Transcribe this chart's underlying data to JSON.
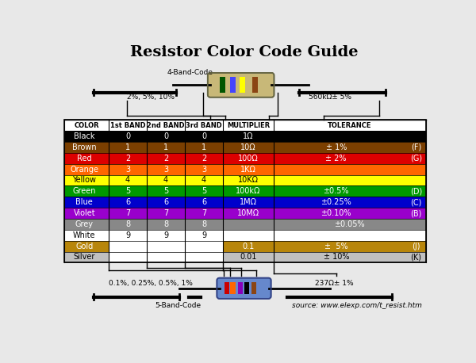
{
  "title": "Resistor Color Code Guide",
  "title_fontsize": 14,
  "col_headers": [
    "COLOR",
    "1st BAND",
    "2nd BAND",
    "3rd BAND",
    "MULTIPLIER",
    "TOLERANCE"
  ],
  "rows": [
    {
      "name": "Black",
      "digit": "0",
      "mult": "1Ω",
      "tol": "",
      "code": "",
      "bg": "#000000",
      "fg": "#ffffff"
    },
    {
      "name": "Brown",
      "digit": "1",
      "mult": "10Ω",
      "tol": "± 1%",
      "code": "(F)",
      "bg": "#7B3F00",
      "fg": "#ffffff"
    },
    {
      "name": "Red",
      "digit": "2",
      "mult": "100Ω",
      "tol": "± 2%",
      "code": "(G)",
      "bg": "#DD0000",
      "fg": "#ffffff"
    },
    {
      "name": "Orange",
      "digit": "3",
      "mult": "1KΩ",
      "tol": "",
      "code": "",
      "bg": "#FF6600",
      "fg": "#ffffff"
    },
    {
      "name": "Yellow",
      "digit": "4",
      "mult": "10KΩ",
      "tol": "",
      "code": "",
      "bg": "#FFFF00",
      "fg": "#000000"
    },
    {
      "name": "Green",
      "digit": "5",
      "mult": "100kΩ",
      "tol": "±0.5%",
      "code": "(D)",
      "bg": "#009900",
      "fg": "#ffffff"
    },
    {
      "name": "Blue",
      "digit": "6",
      "mult": "1MΩ",
      "tol": "±0.25%",
      "code": "(C)",
      "bg": "#0000CC",
      "fg": "#ffffff"
    },
    {
      "name": "Violet",
      "digit": "7",
      "mult": "10MΩ",
      "tol": "±0.10%",
      "code": "(B)",
      "bg": "#9900CC",
      "fg": "#ffffff"
    },
    {
      "name": "Grey",
      "digit": "8",
      "mult": "",
      "tol": "±0.05%",
      "code": "",
      "bg": "#888888",
      "fg": "#ffffff"
    },
    {
      "name": "White",
      "digit": "9",
      "mult": "",
      "tol": "",
      "code": "",
      "bg": "#ffffff",
      "fg": "#000000"
    },
    {
      "name": "Gold",
      "digit": "",
      "mult": "0.1",
      "tol": "±  5%",
      "code": "(J)",
      "bg": "#B8860B",
      "fg": "#ffffff"
    },
    {
      "name": "Silver",
      "digit": "",
      "mult": "0.01",
      "tol": "± 10%",
      "code": "(K)",
      "bg": "#C0C0C0",
      "fg": "#000000"
    }
  ],
  "bg_color": "#e8e8e8",
  "source_text": "source: www.elexp.com/t_resist.htm",
  "label_4band_top": "4-Band-Code",
  "label_4band_left": "2%, 5%, 10%",
  "label_4band_right": "560kΩ± 5%",
  "label_5band_left": "0.1%, 0.25%, 0.5%, 1%",
  "label_5band_right": "237Ω± 1%",
  "label_5band_bottom": "5-Band-Code",
  "res4_bands": [
    "#005500",
    "#4444FF",
    "#FFFF00",
    "#8B4513"
  ],
  "res5_bands": [
    "#CC0000",
    "#FF6600",
    "#8800BB",
    "#000000",
    "#8B4513"
  ],
  "res4_body_color": "#C8B878",
  "res5_body_color": "#6688CC"
}
